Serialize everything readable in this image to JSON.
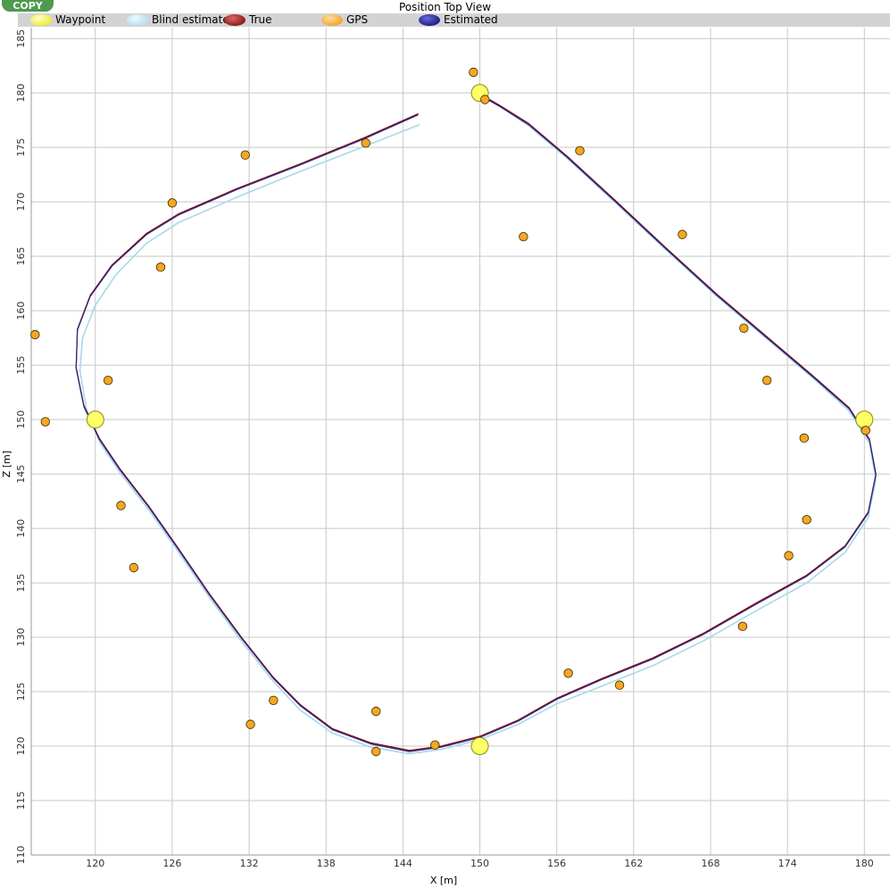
{
  "copy_button": "COPY",
  "chart_data": {
    "type": "line",
    "title": "Position Top View",
    "xlabel": "X [m]",
    "ylabel": "Z [m]",
    "xlim": [
      115,
      182
    ],
    "ylim": [
      110,
      186
    ],
    "x_ticks": [
      120,
      126,
      132,
      138,
      144,
      150,
      156,
      162,
      168,
      174,
      180
    ],
    "y_ticks": [
      110,
      115,
      120,
      125,
      130,
      135,
      140,
      145,
      150,
      155,
      160,
      165,
      170,
      175,
      180,
      185
    ],
    "grid": true,
    "legend_position": "top",
    "legend": [
      {
        "name": "Waypoint",
        "color": "#ffff00"
      },
      {
        "name": "Blind estimated",
        "color": "#add8e6"
      },
      {
        "name": "True",
        "color": "#8b0000"
      },
      {
        "name": "GPS",
        "color": "#ffa500"
      },
      {
        "name": "Estimated",
        "color": "#00008b"
      }
    ],
    "series": [
      {
        "name": "Waypoint",
        "kind": "points",
        "color": "#ffff66",
        "points": [
          [
            150,
            180
          ],
          [
            180,
            150
          ],
          [
            150,
            120
          ],
          [
            120,
            150
          ]
        ]
      },
      {
        "name": "GPS",
        "kind": "points",
        "color": "#f5a623",
        "points": [
          [
            149.5,
            181.9
          ],
          [
            150.4,
            179.4
          ],
          [
            157.8,
            174.7
          ],
          [
            153.4,
            166.8
          ],
          [
            165.8,
            167.0
          ],
          [
            170.6,
            158.4
          ],
          [
            172.4,
            153.6
          ],
          [
            175.3,
            148.3
          ],
          [
            180.1,
            149.0
          ],
          [
            175.5,
            140.8
          ],
          [
            174.1,
            137.5
          ],
          [
            170.5,
            131.0
          ],
          [
            160.9,
            125.6
          ],
          [
            156.9,
            126.7
          ],
          [
            146.5,
            120.1
          ],
          [
            141.9,
            119.5
          ],
          [
            141.9,
            123.2
          ],
          [
            133.9,
            124.2
          ],
          [
            132.1,
            122.0
          ],
          [
            123.0,
            136.4
          ],
          [
            122.0,
            142.1
          ],
          [
            121.0,
            153.6
          ],
          [
            116.1,
            149.8
          ],
          [
            115.3,
            157.8
          ],
          [
            125.1,
            164.0
          ],
          [
            126.0,
            169.9
          ],
          [
            131.7,
            174.3
          ],
          [
            141.1,
            175.4
          ]
        ]
      },
      {
        "name": "Blind estimated",
        "kind": "line",
        "color": "#a9d8ea",
        "points": [
          [
            145.3,
            177.1
          ],
          [
            141.0,
            175.1
          ],
          [
            136.0,
            172.8
          ],
          [
            131.0,
            170.4
          ],
          [
            126.5,
            168.1
          ],
          [
            124.0,
            166.2
          ],
          [
            121.6,
            163.3
          ],
          [
            120.0,
            160.5
          ],
          [
            119.0,
            157.5
          ],
          [
            118.8,
            154.5
          ],
          [
            119.3,
            151.0
          ],
          [
            120.4,
            147.8
          ],
          [
            122.0,
            145.0
          ],
          [
            124.3,
            141.5
          ],
          [
            126.5,
            137.8
          ],
          [
            129.0,
            133.5
          ],
          [
            131.5,
            129.5
          ],
          [
            134.0,
            125.8
          ],
          [
            136.0,
            123.3
          ],
          [
            138.5,
            121.2
          ],
          [
            141.5,
            119.9
          ],
          [
            144.5,
            119.3
          ],
          [
            147.0,
            119.7
          ],
          [
            150.0,
            120.6
          ],
          [
            153.0,
            122.0
          ],
          [
            156.0,
            123.9
          ],
          [
            159.5,
            125.5
          ],
          [
            163.5,
            127.4
          ],
          [
            167.5,
            129.7
          ],
          [
            171.5,
            132.4
          ],
          [
            175.5,
            135.0
          ],
          [
            178.5,
            137.8
          ],
          [
            180.3,
            141.0
          ],
          [
            180.9,
            144.5
          ],
          [
            180.4,
            147.8
          ],
          [
            178.8,
            150.8
          ],
          [
            176.0,
            153.8
          ],
          [
            172.5,
            157.3
          ],
          [
            168.5,
            161.3
          ],
          [
            164.5,
            165.6
          ],
          [
            160.5,
            170.0
          ],
          [
            156.8,
            174.0
          ],
          [
            153.8,
            177.0
          ],
          [
            151.5,
            178.8
          ],
          [
            150.3,
            179.6
          ]
        ]
      },
      {
        "name": "True",
        "kind": "line",
        "color": "#8b0000",
        "points": [
          [
            145.2,
            178.1
          ],
          [
            141.0,
            175.9
          ],
          [
            136.0,
            173.5
          ],
          [
            131.0,
            171.2
          ],
          [
            126.5,
            168.9
          ],
          [
            124.0,
            167.1
          ],
          [
            121.3,
            164.2
          ],
          [
            119.6,
            161.4
          ],
          [
            118.6,
            158.3
          ],
          [
            118.5,
            154.8
          ],
          [
            119.1,
            151.3
          ],
          [
            120.3,
            148.3
          ],
          [
            121.9,
            145.5
          ],
          [
            124.2,
            142.0
          ],
          [
            126.4,
            138.3
          ],
          [
            128.9,
            134.0
          ],
          [
            131.4,
            130.0
          ],
          [
            133.9,
            126.3
          ],
          [
            136.0,
            123.8
          ],
          [
            138.5,
            121.6
          ],
          [
            141.5,
            120.3
          ],
          [
            144.5,
            119.6
          ],
          [
            147.0,
            120.0
          ],
          [
            150.0,
            120.9
          ],
          [
            153.0,
            122.4
          ],
          [
            156.0,
            124.4
          ],
          [
            159.5,
            126.2
          ],
          [
            163.5,
            128.1
          ],
          [
            167.5,
            130.4
          ],
          [
            171.5,
            133.1
          ],
          [
            175.5,
            135.7
          ],
          [
            178.5,
            138.4
          ],
          [
            180.3,
            141.5
          ],
          [
            180.9,
            145.0
          ],
          [
            180.4,
            148.2
          ],
          [
            178.8,
            151.1
          ],
          [
            176.0,
            154.0
          ],
          [
            172.5,
            157.5
          ],
          [
            168.5,
            161.5
          ],
          [
            164.5,
            165.8
          ],
          [
            160.5,
            170.2
          ],
          [
            156.8,
            174.2
          ],
          [
            153.8,
            177.2
          ],
          [
            151.5,
            178.9
          ],
          [
            150.3,
            179.7
          ]
        ]
      },
      {
        "name": "Estimated",
        "kind": "line",
        "color": "#1f2a8c",
        "points": [
          [
            145.2,
            178.0
          ],
          [
            141.0,
            175.8
          ],
          [
            136.0,
            173.4
          ],
          [
            131.0,
            171.1
          ],
          [
            126.5,
            168.8
          ],
          [
            124.0,
            167.0
          ],
          [
            121.3,
            164.1
          ],
          [
            119.6,
            161.3
          ],
          [
            118.6,
            158.2
          ],
          [
            118.5,
            154.7
          ],
          [
            119.1,
            151.2
          ],
          [
            120.3,
            148.2
          ],
          [
            121.9,
            145.4
          ],
          [
            124.2,
            141.9
          ],
          [
            126.4,
            138.2
          ],
          [
            128.9,
            133.9
          ],
          [
            131.4,
            129.9
          ],
          [
            133.9,
            126.2
          ],
          [
            136.0,
            123.7
          ],
          [
            138.5,
            121.5
          ],
          [
            141.5,
            120.2
          ],
          [
            144.5,
            119.5
          ],
          [
            147.0,
            119.9
          ],
          [
            150.0,
            120.8
          ],
          [
            153.0,
            122.3
          ],
          [
            156.0,
            124.3
          ],
          [
            159.5,
            126.1
          ],
          [
            163.5,
            128.0
          ],
          [
            167.5,
            130.3
          ],
          [
            171.5,
            133.0
          ],
          [
            175.5,
            135.6
          ],
          [
            178.5,
            138.3
          ],
          [
            180.3,
            141.4
          ],
          [
            180.9,
            144.9
          ],
          [
            180.4,
            148.1
          ],
          [
            178.8,
            151.0
          ],
          [
            176.0,
            153.9
          ],
          [
            172.5,
            157.4
          ],
          [
            168.5,
            161.4
          ],
          [
            164.5,
            165.7
          ],
          [
            160.5,
            170.1
          ],
          [
            156.8,
            174.1
          ],
          [
            153.8,
            177.1
          ],
          [
            151.5,
            178.8
          ],
          [
            150.3,
            179.6
          ]
        ]
      }
    ]
  }
}
